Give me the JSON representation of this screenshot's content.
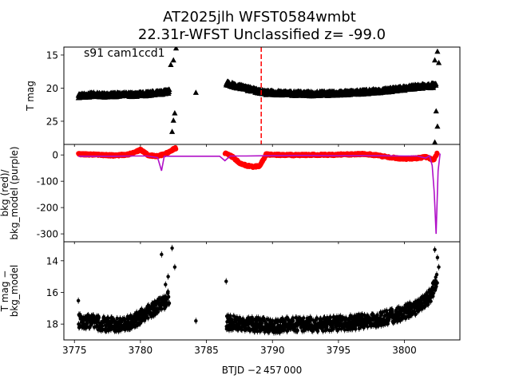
{
  "figure": {
    "title_line1": "AT2025jlh  WFST0584wmbt",
    "title_line2": "22.31r-WFST Unclassified z= -99.0",
    "xlabel": "BTJD −2 457 000"
  },
  "chart_data": [
    {
      "type": "scatter",
      "panel": "top",
      "annotation": "s91 cam1ccd1",
      "ylabel": "T mag",
      "y_inverted": true,
      "ylim": [
        28.5,
        13.8
      ],
      "xlim": [
        3774.2,
        3804.2
      ],
      "yticks": [
        15,
        20,
        25
      ],
      "vline_x": 3789.15,
      "vline_color": "#ff0000",
      "marker_color": "#000000",
      "series": [
        {
          "segments": [
            {
              "x": [
                3775.3,
                3776.5,
                3777.5,
                3778.5,
                3779.5,
                3780.5,
                3781.5,
                3782.2
              ],
              "y": [
                21.2,
                21.0,
                21.1,
                21.0,
                21.0,
                20.9,
                20.7,
                20.5
              ]
            },
            {
              "x": [
                3786.5,
                3787.5,
                3788.5,
                3789.5,
                3791,
                3793,
                3795,
                3797,
                3799,
                3801,
                3802.4
              ],
              "y": [
                19.3,
                19.8,
                20.3,
                20.7,
                20.8,
                20.9,
                20.8,
                20.6,
                20.3,
                19.8,
                19.6
              ]
            }
          ],
          "outliers": [
            {
              "x": 3782.3,
              "y": 16.5
            },
            {
              "x": 3782.5,
              "y": 15.8
            },
            {
              "x": 3782.7,
              "y": 14.0
            },
            {
              "x": 3782.4,
              "y": 26.6
            },
            {
              "x": 3782.5,
              "y": 24.9
            },
            {
              "x": 3782.6,
              "y": 23.8
            },
            {
              "x": 3784.2,
              "y": 20.7
            },
            {
              "x": 3802.3,
              "y": 15.8
            },
            {
              "x": 3802.5,
              "y": 14.5
            },
            {
              "x": 3802.6,
              "y": 16.2
            },
            {
              "x": 3802.4,
              "y": 23.5
            },
            {
              "x": 3802.5,
              "y": 25.8
            },
            {
              "x": 3802.3,
              "y": 28.2
            }
          ]
        }
      ]
    },
    {
      "type": "line",
      "panel": "middle",
      "ylabel": "bkg (red)/\nbkg_model (purple)",
      "ylim": [
        -330,
        40
      ],
      "xlim": [
        3774.2,
        3804.2
      ],
      "yticks": [
        0,
        -100,
        -200,
        -300
      ],
      "series": [
        {
          "color": "#ff0000",
          "points": [
            [
              3775.3,
              3
            ],
            [
              3776,
              2
            ],
            [
              3777,
              0
            ],
            [
              3778,
              -2
            ],
            [
              3779,
              1
            ],
            [
              3779.5,
              8
            ],
            [
              3780,
              20
            ],
            [
              3780.3,
              10
            ],
            [
              3780.6,
              -2
            ],
            [
              3781.2,
              -4
            ],
            [
              3781.8,
              2
            ],
            [
              3782.3,
              15
            ],
            [
              3782.6,
              25
            ],
            [
              3786.5,
              5
            ],
            [
              3787,
              -8
            ],
            [
              3787.5,
              -30
            ],
            [
              3788,
              -40
            ],
            [
              3788.5,
              -45
            ],
            [
              3789,
              -42
            ],
            [
              3789.3,
              -20
            ],
            [
              3789.5,
              2
            ],
            [
              3790.5,
              0
            ],
            [
              3792,
              0
            ],
            [
              3794,
              0
            ],
            [
              3796,
              2
            ],
            [
              3797,
              4
            ],
            [
              3798,
              -2
            ],
            [
              3799,
              -10
            ],
            [
              3800,
              -15
            ],
            [
              3801,
              -12
            ],
            [
              3801.6,
              -8
            ],
            [
              3802.2,
              -20
            ],
            [
              3802.5,
              8
            ]
          ]
        },
        {
          "color": "#b010c8",
          "points": [
            [
              3775.3,
              -5
            ],
            [
              3776.5,
              -5
            ],
            [
              3778,
              -5
            ],
            [
              3779.5,
              -4
            ],
            [
              3780.5,
              -4
            ],
            [
              3781.3,
              -10
            ],
            [
              3781.6,
              -60
            ],
            [
              3781.8,
              -5
            ],
            [
              3782.5,
              -5
            ],
            [
              3783.5,
              -5
            ],
            [
              3785.5,
              -5
            ],
            [
              3786,
              -5
            ],
            [
              3786.4,
              -22
            ],
            [
              3786.8,
              -4
            ],
            [
              3788,
              -4
            ],
            [
              3789.5,
              -3
            ],
            [
              3792,
              -2
            ],
            [
              3795,
              -3
            ],
            [
              3798,
              -3
            ],
            [
              3800,
              -4
            ],
            [
              3801,
              -4
            ],
            [
              3801.6,
              -12
            ],
            [
              3801.9,
              -3
            ],
            [
              3802.1,
              -40
            ],
            [
              3802.25,
              -140
            ],
            [
              3802.4,
              -300
            ],
            [
              3802.55,
              -60
            ],
            [
              3802.7,
              5
            ]
          ]
        }
      ]
    },
    {
      "type": "scatter",
      "panel": "bottom",
      "ylabel": "T mag −\nbkg_model",
      "y_inverted": true,
      "ylim": [
        19.0,
        12.8
      ],
      "xlim": [
        3774.2,
        3804.2
      ],
      "yticks": [
        14,
        16,
        18
      ],
      "xticks": [
        3775,
        3780,
        3785,
        3790,
        3795,
        3800
      ],
      "marker_color": "#000000",
      "series": [
        {
          "segments": [
            {
              "x": [
                3775.3,
                3776.5,
                3777.5,
                3778.5,
                3779.5,
                3780.5,
                3781.3,
                3781.8,
                3782.2
              ],
              "y": [
                17.8,
                17.9,
                18.0,
                18.0,
                17.8,
                17.3,
                16.9,
                16.6,
                16.3
              ]
            },
            {
              "x": [
                3786.5,
                3788,
                3790,
                3792,
                3794,
                3796,
                3798,
                3799.5,
                3801,
                3802,
                3802.5
              ],
              "y": [
                17.9,
                18.0,
                18.1,
                18.0,
                18.0,
                17.9,
                17.7,
                17.4,
                16.9,
                16.2,
                15.0
              ]
            }
          ],
          "outliers": [
            {
              "x": 3781.6,
              "y": 13.6
            },
            {
              "x": 3782.4,
              "y": 13.2
            },
            {
              "x": 3782.1,
              "y": 15.0
            },
            {
              "x": 3781.9,
              "y": 15.5
            },
            {
              "x": 3782.6,
              "y": 14.4
            },
            {
              "x": 3784.2,
              "y": 17.8
            },
            {
              "x": 3802.3,
              "y": 13.3
            },
            {
              "x": 3802.5,
              "y": 13.8
            },
            {
              "x": 3802.6,
              "y": 14.4
            }
          ]
        }
      ]
    }
  ]
}
